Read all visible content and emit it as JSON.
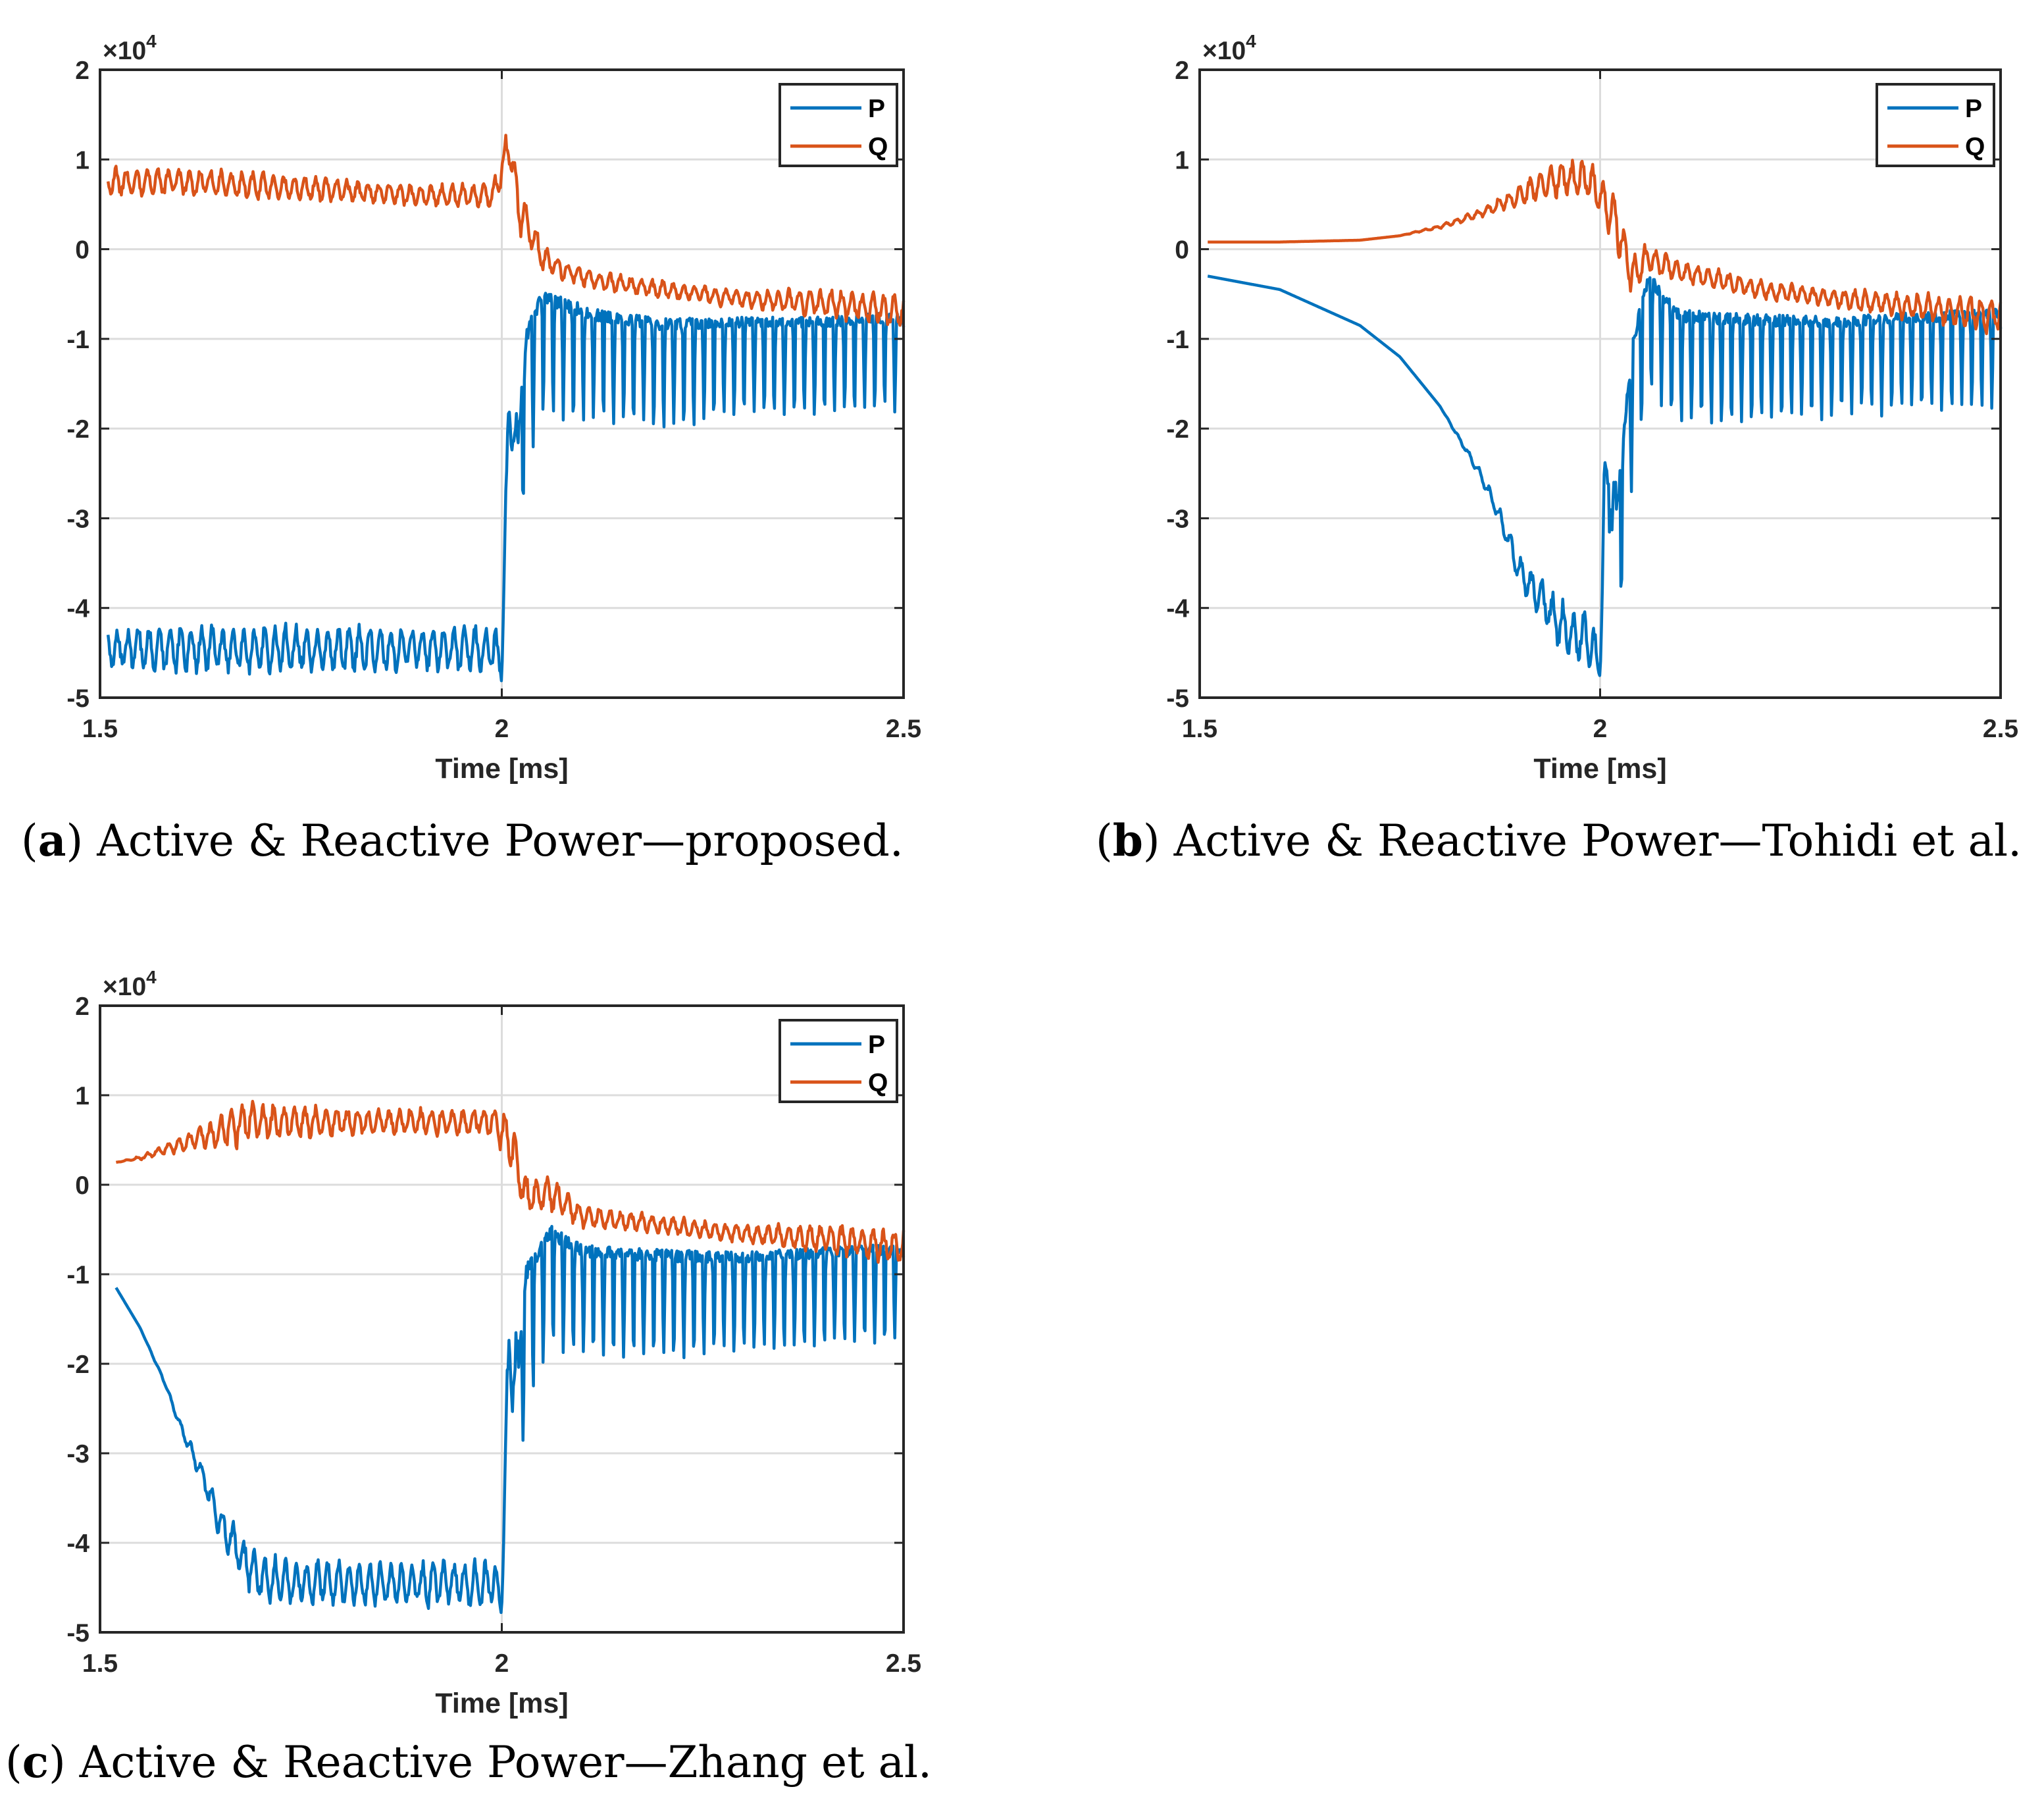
{
  "colors": {
    "P": "#0072BD",
    "Q": "#D95319",
    "grid": "#dcdcdc",
    "axis": "#262626"
  },
  "chart_data": [
    {
      "id": "a",
      "type": "line",
      "caption_letter": "a",
      "caption_text": "Active & Reactive Power—proposed.",
      "xlabel": "Time [ms]",
      "ylabel": "",
      "exponent_base": "×10",
      "exponent_power": "4",
      "xlim": [
        1.5,
        2.5
      ],
      "ylim": [
        -5,
        2
      ],
      "xticks": [
        1.5,
        2,
        2.5
      ],
      "xtick_labels": [
        "1.5",
        "2",
        "2.5"
      ],
      "yticks": [
        -5,
        -4,
        -3,
        -2,
        -1,
        0,
        1,
        2
      ],
      "ytick_labels": [
        "-5",
        "-4",
        "-3",
        "-2",
        "-1",
        "0",
        "1",
        "2"
      ],
      "grid": true,
      "legend_position": "top-right",
      "series": [
        {
          "name": "P",
          "x": [
            1.51,
            1.6,
            1.7,
            1.8,
            1.9,
            1.99,
            2.0,
            2.005,
            2.01,
            2.02,
            2.03,
            2.05,
            2.08,
            2.12,
            2.2,
            2.3,
            2.4,
            2.5
          ],
          "values": [
            -4.45,
            -4.45,
            -4.45,
            -4.45,
            -4.45,
            -4.45,
            -4.6,
            -3.0,
            -1.6,
            -2.4,
            -1.2,
            -0.7,
            -0.8,
            -0.9,
            -1.0,
            -0.95,
            -0.95,
            -0.9
          ],
          "osc": [
            0.25,
            0.25,
            0.25,
            0.25,
            0.25,
            0.25,
            0.2,
            0.4,
            0.6,
            0.6,
            0.6,
            0.5,
            0.5,
            0.45,
            0.45,
            0.4,
            0.4,
            0.4
          ]
        },
        {
          "name": "Q",
          "x": [
            1.51,
            1.6,
            1.7,
            1.8,
            1.9,
            1.99,
            2.01,
            2.02,
            2.05,
            2.08,
            2.12,
            2.2,
            2.3,
            2.4,
            2.5
          ],
          "values": [
            0.75,
            0.75,
            0.7,
            0.65,
            0.6,
            0.6,
            1.2,
            0.5,
            -0.1,
            -0.25,
            -0.35,
            -0.45,
            -0.55,
            -0.6,
            -0.7
          ],
          "osc": [
            0.15,
            0.15,
            0.15,
            0.12,
            0.12,
            0.15,
            0.3,
            0.3,
            0.15,
            0.12,
            0.1,
            0.1,
            0.1,
            0.15,
            0.2
          ]
        }
      ]
    },
    {
      "id": "b",
      "type": "line",
      "caption_letter": "b",
      "caption_text": "Active & Reactive Power—Tohidi et al.",
      "xlabel": "Time [ms]",
      "ylabel": "",
      "exponent_base": "×10",
      "exponent_power": "4",
      "xlim": [
        1.5,
        2.5
      ],
      "ylim": [
        -5,
        2
      ],
      "xticks": [
        1.5,
        2,
        2.5
      ],
      "xtick_labels": [
        "1.5",
        "2",
        "2.5"
      ],
      "yticks": [
        -5,
        -4,
        -3,
        -2,
        -1,
        0,
        1,
        2
      ],
      "ytick_labels": [
        "-5",
        "-4",
        "-3",
        "-2",
        "-1",
        "0",
        "1",
        "2"
      ],
      "grid": true,
      "legend_position": "top-right",
      "series": [
        {
          "name": "P",
          "x": [
            1.51,
            1.6,
            1.7,
            1.75,
            1.8,
            1.85,
            1.88,
            1.9,
            1.95,
            1.99,
            2.0,
            2.005,
            2.01,
            2.02,
            2.04,
            2.06,
            2.1,
            2.2,
            2.3,
            2.4,
            2.5
          ],
          "values": [
            -0.3,
            -0.45,
            -0.85,
            -1.2,
            -1.75,
            -2.5,
            -3.1,
            -3.6,
            -4.2,
            -4.4,
            -4.7,
            -3.0,
            -2.4,
            -3.2,
            -1.3,
            -0.5,
            -0.9,
            -0.95,
            -0.95,
            -0.9,
            -0.85
          ],
          "osc": [
            0,
            0,
            0,
            0,
            0,
            0.05,
            0.12,
            0.18,
            0.28,
            0.3,
            0.1,
            0.5,
            0.6,
            0.6,
            0.6,
            0.5,
            0.45,
            0.45,
            0.4,
            0.4,
            0.4
          ]
        },
        {
          "name": "Q",
          "x": [
            1.51,
            1.6,
            1.7,
            1.75,
            1.8,
            1.85,
            1.9,
            1.95,
            1.99,
            2.02,
            2.04,
            2.06,
            2.1,
            2.2,
            2.3,
            2.4,
            2.5
          ],
          "values": [
            0.08,
            0.08,
            0.1,
            0.15,
            0.25,
            0.4,
            0.6,
            0.8,
            0.75,
            0.3,
            -0.3,
            -0.1,
            -0.25,
            -0.45,
            -0.55,
            -0.65,
            -0.75
          ],
          "osc": [
            0,
            0,
            0,
            0,
            0.02,
            0.05,
            0.12,
            0.2,
            0.2,
            0.3,
            0.25,
            0.15,
            0.12,
            0.1,
            0.1,
            0.15,
            0.2
          ]
        }
      ]
    },
    {
      "id": "c",
      "type": "line",
      "caption_letter": "c",
      "caption_text": "Active & Reactive Power—Zhang et al.",
      "xlabel": "Time [ms]",
      "ylabel": "",
      "exponent_base": "×10",
      "exponent_power": "4",
      "xlim": [
        1.5,
        2.5
      ],
      "ylim": [
        -5,
        2
      ],
      "xticks": [
        1.5,
        2,
        2.5
      ],
      "xtick_labels": [
        "1.5",
        "2",
        "2.5"
      ],
      "yticks": [
        -5,
        -4,
        -3,
        -2,
        -1,
        0,
        1,
        2
      ],
      "ytick_labels": [
        "-5",
        "-4",
        "-3",
        "-2",
        "-1",
        "0",
        "1",
        "2"
      ],
      "grid": true,
      "legend_position": "top-right",
      "series": [
        {
          "name": "P",
          "x": [
            1.52,
            1.55,
            1.58,
            1.6,
            1.63,
            1.65,
            1.68,
            1.7,
            1.75,
            1.8,
            1.9,
            1.99,
            2.0,
            2.005,
            2.01,
            2.02,
            2.03,
            2.06,
            2.1,
            2.2,
            2.3,
            2.4,
            2.5
          ],
          "values": [
            -1.15,
            -1.6,
            -2.2,
            -2.7,
            -3.3,
            -3.8,
            -4.2,
            -4.4,
            -4.45,
            -4.45,
            -4.45,
            -4.45,
            -4.6,
            -3.0,
            -1.6,
            -2.4,
            -1.2,
            -0.7,
            -0.9,
            -0.95,
            -0.95,
            -0.9,
            -0.85
          ],
          "osc": [
            0,
            0,
            0.02,
            0.05,
            0.12,
            0.2,
            0.25,
            0.25,
            0.25,
            0.25,
            0.25,
            0.25,
            0.2,
            0.4,
            0.6,
            0.6,
            0.6,
            0.5,
            0.45,
            0.45,
            0.4,
            0.4,
            0.4
          ]
        },
        {
          "name": "Q",
          "x": [
            1.52,
            1.55,
            1.6,
            1.65,
            1.68,
            1.7,
            1.8,
            1.9,
            1.99,
            2.01,
            2.03,
            2.06,
            2.1,
            2.2,
            2.3,
            2.4,
            2.5
          ],
          "values": [
            0.25,
            0.3,
            0.45,
            0.6,
            0.7,
            0.7,
            0.7,
            0.7,
            0.7,
            0.5,
            -0.15,
            -0.1,
            -0.35,
            -0.45,
            -0.55,
            -0.6,
            -0.7
          ],
          "osc": [
            0,
            0.02,
            0.08,
            0.18,
            0.25,
            0.2,
            0.15,
            0.15,
            0.15,
            0.3,
            0.25,
            0.2,
            0.12,
            0.1,
            0.1,
            0.15,
            0.2
          ]
        }
      ]
    }
  ]
}
